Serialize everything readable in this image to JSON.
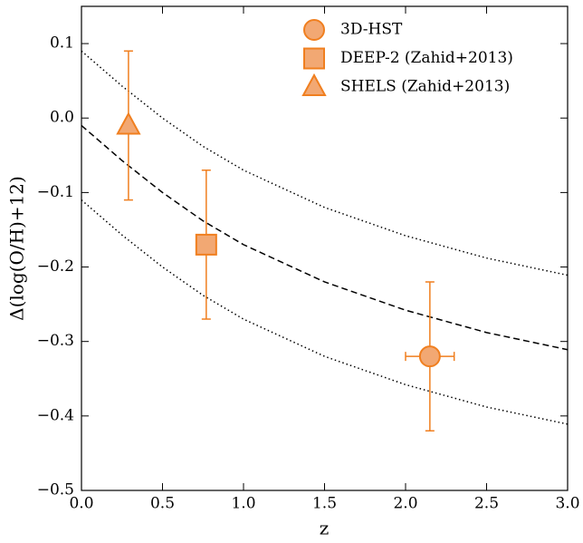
{
  "chart_data": {
    "type": "scatter",
    "x_label": "z",
    "y_label": "Δ(log(O/H)+12)",
    "xlim": [
      0,
      3
    ],
    "ylim": [
      -0.5,
      0.15
    ],
    "xticks": [
      {
        "value": 0,
        "label": "0.0"
      },
      0.5,
      {
        "value": 1,
        "label": "1.0"
      },
      1.5,
      {
        "value": 2,
        "label": "2.0"
      },
      2.5,
      {
        "value": 3,
        "label": "3.0"
      }
    ],
    "yticks": [
      {
        "value": -0.5,
        "label": "−0.5"
      },
      {
        "value": -0.4,
        "label": "−0.4"
      },
      {
        "value": -0.3,
        "label": "−0.3"
      },
      {
        "value": -0.2,
        "label": "−0.2"
      },
      {
        "value": -0.1,
        "label": "−0.1"
      },
      {
        "value": 0,
        "label": "0.0"
      },
      0.1
    ],
    "legend": "upper right",
    "series": [
      {
        "name": "3D-HST",
        "marker": "circle",
        "color": "#f07f1f",
        "fill": "#f2a873",
        "x": [
          2.15
        ],
        "values": [
          -0.32
        ],
        "yerr": [
          0.1
        ],
        "xerr": [
          0.15
        ]
      },
      {
        "name": "DEEP-2 (Zahid+2013)",
        "marker": "square",
        "color": "#f07f1f",
        "fill": "#f2a873",
        "x": [
          0.77
        ],
        "values": [
          -0.17
        ],
        "yerr": [
          0.1
        ]
      },
      {
        "name": "SHELS (Zahid+2013)",
        "marker": "triangle",
        "color": "#f07f1f",
        "fill": "#f2a873",
        "x": [
          0.29
        ],
        "values": [
          -0.01
        ],
        "yerr": [
          0.1
        ]
      }
    ],
    "lines": [
      {
        "dash": "dashed",
        "color": "#000000",
        "x": [
          0,
          0.25,
          0.5,
          0.75,
          1,
          1.5,
          2,
          2.5,
          3
        ],
        "values": [
          -0.01,
          -0.057,
          -0.1,
          -0.138,
          -0.17,
          -0.22,
          -0.258,
          -0.288,
          -0.311
        ]
      },
      {
        "dash": "dotted",
        "color": "#000000",
        "x": [
          0,
          0.25,
          0.5,
          0.75,
          1,
          1.5,
          2,
          2.5,
          3
        ],
        "values": [
          0.09,
          0.043,
          0,
          -0.038,
          -0.07,
          -0.12,
          -0.158,
          -0.188,
          -0.211
        ]
      },
      {
        "dash": "dotted",
        "color": "#000000",
        "x": [
          0,
          0.25,
          0.5,
          0.75,
          1,
          1.5,
          2,
          2.5,
          3
        ],
        "values": [
          -0.11,
          -0.157,
          -0.2,
          -0.238,
          -0.27,
          -0.32,
          -0.358,
          -0.388,
          -0.411
        ]
      }
    ]
  }
}
